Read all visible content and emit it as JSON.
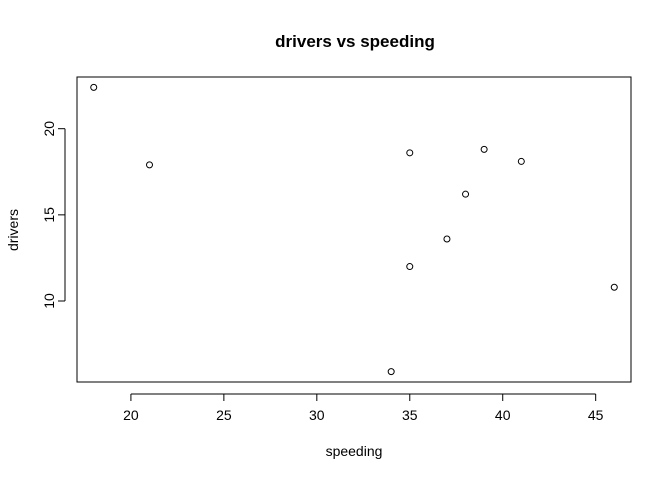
{
  "chart_data": {
    "type": "scatter",
    "title": "drivers vs speeding",
    "xlabel": "speeding",
    "ylabel": "drivers",
    "xlim": [
      17.1,
      46.9
    ],
    "ylim": [
      5.3,
      23.0
    ],
    "xticks": [
      20,
      25,
      30,
      35,
      40,
      45
    ],
    "yticks": [
      10,
      15,
      20
    ],
    "grid": false,
    "marker": "open-circle",
    "colors": {
      "axis": "#000000",
      "points": "#000000",
      "background": "#ffffff"
    },
    "points": [
      {
        "x": 18,
        "y": 22.4
      },
      {
        "x": 21,
        "y": 17.9
      },
      {
        "x": 34,
        "y": 5.9
      },
      {
        "x": 35,
        "y": 18.6
      },
      {
        "x": 35,
        "y": 12.0
      },
      {
        "x": 37,
        "y": 13.6
      },
      {
        "x": 38,
        "y": 16.2
      },
      {
        "x": 39,
        "y": 18.8
      },
      {
        "x": 41,
        "y": 18.1
      },
      {
        "x": 46,
        "y": 10.8
      }
    ]
  }
}
